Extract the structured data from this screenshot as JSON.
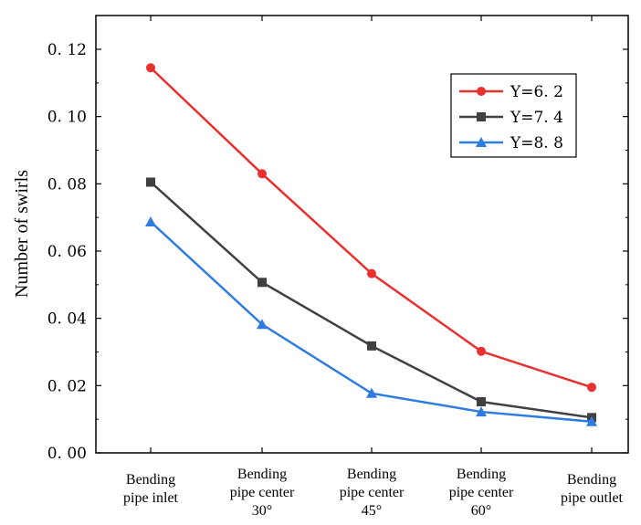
{
  "chart_data": {
    "type": "line",
    "title": "",
    "xlabel": "",
    "ylabel": "Number of swirls",
    "categories": [
      [
        "Bending",
        "pipe inlet"
      ],
      [
        "Bending",
        "pipe center",
        "30°"
      ],
      [
        "Bending",
        "pipe center",
        "45°"
      ],
      [
        "Bending",
        "pipe center",
        "60°"
      ],
      [
        "Bending",
        "pipe outlet"
      ]
    ],
    "ylim": [
      0,
      0.13
    ],
    "yticks": [
      "0. 00",
      "0. 02",
      "0. 04",
      "0. 06",
      "0. 08",
      "0. 10",
      "0. 12"
    ],
    "ytick_values": [
      0,
      0.02,
      0.04,
      0.06,
      0.08,
      0.1,
      0.12
    ],
    "grid": false,
    "legend_position": "top-right",
    "series": [
      {
        "name": "Y=6. 2",
        "color": "#e8302f",
        "marker": "circle",
        "values": [
          0.1145,
          0.083,
          0.0533,
          0.0302,
          0.0195
        ]
      },
      {
        "name": "Y=7. 4",
        "color": "#404040",
        "marker": "square",
        "values": [
          0.0805,
          0.0507,
          0.0318,
          0.0152,
          0.0105
        ]
      },
      {
        "name": "Y=8. 8",
        "color": "#2f7ce0",
        "marker": "triangle",
        "values": [
          0.0687,
          0.0382,
          0.0177,
          0.0122,
          0.0093
        ]
      }
    ]
  }
}
